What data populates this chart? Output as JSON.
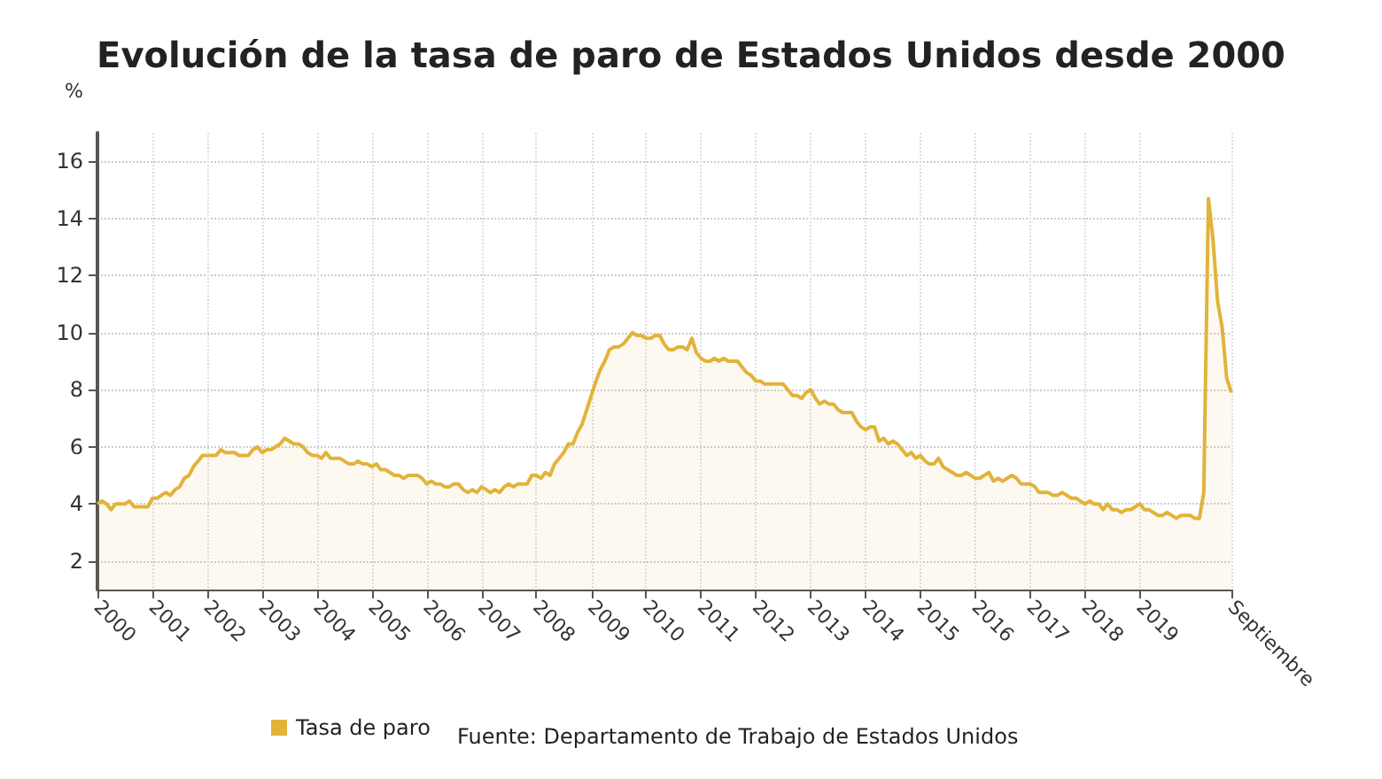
{
  "chart_data": {
    "type": "area",
    "title": "Evolución de la tasa de paro de Estados Unidos desde 2000",
    "ylabel": "%",
    "annotations": [
      "Fuente: Departamento de Trabajo de Estados Unidos"
    ],
    "x": [
      "2000-01",
      "2000-02",
      "2000-03",
      "2000-04",
      "2000-05",
      "2000-06",
      "2000-07",
      "2000-08",
      "2000-09",
      "2000-10",
      "2000-11",
      "2000-12",
      "2001-01",
      "2001-02",
      "2001-03",
      "2001-04",
      "2001-05",
      "2001-06",
      "2001-07",
      "2001-08",
      "2001-09",
      "2001-10",
      "2001-11",
      "2001-12",
      "2002-01",
      "2002-02",
      "2002-03",
      "2002-04",
      "2002-05",
      "2002-06",
      "2002-07",
      "2002-08",
      "2002-09",
      "2002-10",
      "2002-11",
      "2002-12",
      "2003-01",
      "2003-02",
      "2003-03",
      "2003-04",
      "2003-05",
      "2003-06",
      "2003-07",
      "2003-08",
      "2003-09",
      "2003-10",
      "2003-11",
      "2003-12",
      "2004-01",
      "2004-02",
      "2004-03",
      "2004-04",
      "2004-05",
      "2004-06",
      "2004-07",
      "2004-08",
      "2004-09",
      "2004-10",
      "2004-11",
      "2004-12",
      "2005-01",
      "2005-02",
      "2005-03",
      "2005-04",
      "2005-05",
      "2005-06",
      "2005-07",
      "2005-08",
      "2005-09",
      "2005-10",
      "2005-11",
      "2005-12",
      "2006-01",
      "2006-02",
      "2006-03",
      "2006-04",
      "2006-05",
      "2006-06",
      "2006-07",
      "2006-08",
      "2006-09",
      "2006-10",
      "2006-11",
      "2006-12",
      "2007-01",
      "2007-02",
      "2007-03",
      "2007-04",
      "2007-05",
      "2007-06",
      "2007-07",
      "2007-08",
      "2007-09",
      "2007-10",
      "2007-11",
      "2007-12",
      "2008-01",
      "2008-02",
      "2008-03",
      "2008-04",
      "2008-05",
      "2008-06",
      "2008-07",
      "2008-08",
      "2008-09",
      "2008-10",
      "2008-11",
      "2008-12",
      "2009-01",
      "2009-02",
      "2009-03",
      "2009-04",
      "2009-05",
      "2009-06",
      "2009-07",
      "2009-08",
      "2009-09",
      "2009-10",
      "2009-11",
      "2009-12",
      "2010-01",
      "2010-02",
      "2010-03",
      "2010-04",
      "2010-05",
      "2010-06",
      "2010-07",
      "2010-08",
      "2010-09",
      "2010-10",
      "2010-11",
      "2010-12",
      "2011-01",
      "2011-02",
      "2011-03",
      "2011-04",
      "2011-05",
      "2011-06",
      "2011-07",
      "2011-08",
      "2011-09",
      "2011-10",
      "2011-11",
      "2011-12",
      "2012-01",
      "2012-02",
      "2012-03",
      "2012-04",
      "2012-05",
      "2012-06",
      "2012-07",
      "2012-08",
      "2012-09",
      "2012-10",
      "2012-11",
      "2012-12",
      "2013-01",
      "2013-02",
      "2013-03",
      "2013-04",
      "2013-05",
      "2013-06",
      "2013-07",
      "2013-08",
      "2013-09",
      "2013-10",
      "2013-11",
      "2013-12",
      "2014-01",
      "2014-02",
      "2014-03",
      "2014-04",
      "2014-05",
      "2014-06",
      "2014-07",
      "2014-08",
      "2014-09",
      "2014-10",
      "2014-11",
      "2014-12",
      "2015-01",
      "2015-02",
      "2015-03",
      "2015-04",
      "2015-05",
      "2015-06",
      "2015-07",
      "2015-08",
      "2015-09",
      "2015-10",
      "2015-11",
      "2015-12",
      "2016-01",
      "2016-02",
      "2016-03",
      "2016-04",
      "2016-05",
      "2016-06",
      "2016-07",
      "2016-08",
      "2016-09",
      "2016-10",
      "2016-11",
      "2016-12",
      "2017-01",
      "2017-02",
      "2017-03",
      "2017-04",
      "2017-05",
      "2017-06",
      "2017-07",
      "2017-08",
      "2017-09",
      "2017-10",
      "2017-11",
      "2017-12",
      "2018-01",
      "2018-02",
      "2018-03",
      "2018-04",
      "2018-05",
      "2018-06",
      "2018-07",
      "2018-08",
      "2018-09",
      "2018-10",
      "2018-11",
      "2018-12",
      "2019-01",
      "2019-02",
      "2019-03",
      "2019-04",
      "2019-05",
      "2019-06",
      "2019-07",
      "2019-08",
      "2019-09",
      "2019-10",
      "2019-11",
      "2019-12",
      "2020-01",
      "2020-02",
      "2020-03",
      "2020-04",
      "2020-05",
      "2020-06",
      "2020-07",
      "2020-08",
      "2020-09"
    ],
    "series": [
      {
        "name": "Tasa de paro",
        "color": "#e2b33a",
        "values": [
          4.0,
          4.1,
          4.0,
          3.8,
          4.0,
          4.0,
          4.0,
          4.1,
          3.9,
          3.9,
          3.9,
          3.9,
          4.2,
          4.2,
          4.3,
          4.4,
          4.3,
          4.5,
          4.6,
          4.9,
          5.0,
          5.3,
          5.5,
          5.7,
          5.7,
          5.7,
          5.7,
          5.9,
          5.8,
          5.8,
          5.8,
          5.7,
          5.7,
          5.7,
          5.9,
          6.0,
          5.8,
          5.9,
          5.9,
          6.0,
          6.1,
          6.3,
          6.2,
          6.1,
          6.1,
          6.0,
          5.8,
          5.7,
          5.7,
          5.6,
          5.8,
          5.6,
          5.6,
          5.6,
          5.5,
          5.4,
          5.4,
          5.5,
          5.4,
          5.4,
          5.3,
          5.4,
          5.2,
          5.2,
          5.1,
          5.0,
          5.0,
          4.9,
          5.0,
          5.0,
          5.0,
          4.9,
          4.7,
          4.8,
          4.7,
          4.7,
          4.6,
          4.6,
          4.7,
          4.7,
          4.5,
          4.4,
          4.5,
          4.4,
          4.6,
          4.5,
          4.4,
          4.5,
          4.4,
          4.6,
          4.7,
          4.6,
          4.7,
          4.7,
          4.7,
          5.0,
          5.0,
          4.9,
          5.1,
          5.0,
          5.4,
          5.6,
          5.8,
          6.1,
          6.1,
          6.5,
          6.8,
          7.3,
          7.8,
          8.3,
          8.7,
          9.0,
          9.4,
          9.5,
          9.5,
          9.6,
          9.8,
          10.0,
          9.9,
          9.9,
          9.8,
          9.8,
          9.9,
          9.9,
          9.6,
          9.4,
          9.4,
          9.5,
          9.5,
          9.4,
          9.8,
          9.3,
          9.1,
          9.0,
          9.0,
          9.1,
          9.0,
          9.1,
          9.0,
          9.0,
          9.0,
          8.8,
          8.6,
          8.5,
          8.3,
          8.3,
          8.2,
          8.2,
          8.2,
          8.2,
          8.2,
          8.0,
          7.8,
          7.8,
          7.7,
          7.9,
          8.0,
          7.7,
          7.5,
          7.6,
          7.5,
          7.5,
          7.3,
          7.2,
          7.2,
          7.2,
          6.9,
          6.7,
          6.6,
          6.7,
          6.7,
          6.2,
          6.3,
          6.1,
          6.2,
          6.1,
          5.9,
          5.7,
          5.8,
          5.6,
          5.7,
          5.5,
          5.4,
          5.4,
          5.6,
          5.3,
          5.2,
          5.1,
          5.0,
          5.0,
          5.1,
          5.0,
          4.9,
          4.9,
          5.0,
          5.1,
          4.8,
          4.9,
          4.8,
          4.9,
          5.0,
          4.9,
          4.7,
          4.7,
          4.7,
          4.6,
          4.4,
          4.4,
          4.4,
          4.3,
          4.3,
          4.4,
          4.3,
          4.2,
          4.2,
          4.1,
          4.0,
          4.1,
          4.0,
          4.0,
          3.8,
          4.0,
          3.8,
          3.8,
          3.7,
          3.8,
          3.8,
          3.9,
          4.0,
          3.8,
          3.8,
          3.7,
          3.6,
          3.6,
          3.7,
          3.6,
          3.5,
          3.6,
          3.6,
          3.6,
          3.5,
          3.5,
          4.4,
          14.7,
          13.3,
          11.1,
          10.2,
          8.4,
          7.9
        ]
      }
    ],
    "xlim": [
      "2000-01",
      "2020-09"
    ],
    "xticks": [
      {
        "value": "2000-01",
        "label": "2000"
      },
      {
        "value": "2001-01",
        "label": "2001"
      },
      {
        "value": "2002-01",
        "label": "2002"
      },
      {
        "value": "2003-01",
        "label": "2003"
      },
      {
        "value": "2004-01",
        "label": "2004"
      },
      {
        "value": "2005-01",
        "label": "2005"
      },
      {
        "value": "2006-01",
        "label": "2006"
      },
      {
        "value": "2007-01",
        "label": "2007"
      },
      {
        "value": "2008-01",
        "label": "2008"
      },
      {
        "value": "2009-01",
        "label": "2009"
      },
      {
        "value": "2010-01",
        "label": "2010"
      },
      {
        "value": "2011-01",
        "label": "2011"
      },
      {
        "value": "2012-01",
        "label": "2012"
      },
      {
        "value": "2013-01",
        "label": "2013"
      },
      {
        "value": "2014-01",
        "label": "2014"
      },
      {
        "value": "2015-01",
        "label": "2015"
      },
      {
        "value": "2016-01",
        "label": "2016"
      },
      {
        "value": "2017-01",
        "label": "2017"
      },
      {
        "value": "2018-01",
        "label": "2018"
      },
      {
        "value": "2019-01",
        "label": "2019"
      },
      {
        "value": "2020-09",
        "label": "Septiembre"
      }
    ],
    "ylim": [
      1,
      17
    ],
    "yticks": [
      2,
      4,
      6,
      8,
      10,
      12,
      14,
      16
    ],
    "grid": true,
    "legend": "bottom"
  }
}
